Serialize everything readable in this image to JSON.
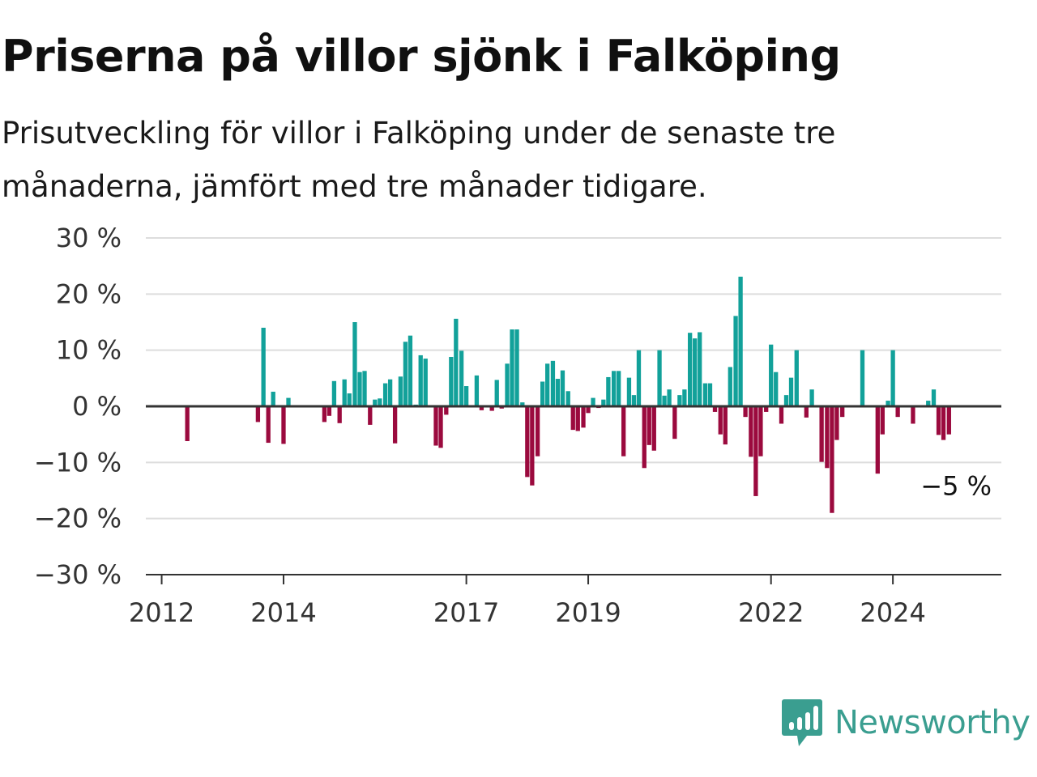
{
  "title": "Priserna på villor sjönk i Falköping",
  "subtitle": "Prisutveckling för villor i Falköping under de senaste tre månaderna, jämfört med tre månader tidigare.",
  "brand": {
    "name": "Newsworthy",
    "icon": "newsworthy-logo-icon",
    "color": "#3a9e90"
  },
  "colors": {
    "positive": "#12a19a",
    "negative": "#9b0a3e",
    "grid": "#dddddd",
    "axis": "#333333"
  },
  "chart_data": {
    "type": "bar",
    "title": "Priserna på villor sjönk i Falköping",
    "xlabel": "",
    "ylabel": "",
    "ylim": [
      -30,
      30
    ],
    "yticks": [
      30,
      20,
      10,
      0,
      -10,
      -20,
      -30
    ],
    "ytick_labels": [
      "30 %",
      "20 %",
      "10 %",
      "0 %",
      "−10 %",
      "−20 %",
      "−30 %"
    ],
    "xticks": [
      2012,
      2014,
      2017,
      2019,
      2022,
      2024
    ],
    "xtick_labels": [
      "2012",
      "2014",
      "2017",
      "2019",
      "2022",
      "2024"
    ],
    "grid": true,
    "end_label": "−5 %",
    "x_unit": "year (monthly bars, decimal year)",
    "bars": [
      {
        "x": 2012.42,
        "value": -6.2
      },
      {
        "x": 2013.58,
        "value": -2.8
      },
      {
        "x": 2013.67,
        "value": 14.0
      },
      {
        "x": 2013.75,
        "value": -6.5
      },
      {
        "x": 2013.83,
        "value": 2.6
      },
      {
        "x": 2014.0,
        "value": -6.7
      },
      {
        "x": 2014.08,
        "value": 1.5
      },
      {
        "x": 2014.67,
        "value": -2.8
      },
      {
        "x": 2014.75,
        "value": -1.7
      },
      {
        "x": 2014.83,
        "value": 4.5
      },
      {
        "x": 2014.92,
        "value": -3.0
      },
      {
        "x": 2015.0,
        "value": 4.8
      },
      {
        "x": 2015.08,
        "value": 2.3
      },
      {
        "x": 2015.17,
        "value": 15.0
      },
      {
        "x": 2015.25,
        "value": 6.1
      },
      {
        "x": 2015.33,
        "value": 6.3
      },
      {
        "x": 2015.42,
        "value": -3.3
      },
      {
        "x": 2015.5,
        "value": 1.2
      },
      {
        "x": 2015.58,
        "value": 1.4
      },
      {
        "x": 2015.67,
        "value": 4.1
      },
      {
        "x": 2015.75,
        "value": 4.8
      },
      {
        "x": 2015.83,
        "value": -6.6
      },
      {
        "x": 2015.92,
        "value": 5.3
      },
      {
        "x": 2016.0,
        "value": 11.5
      },
      {
        "x": 2016.08,
        "value": 12.6
      },
      {
        "x": 2016.17,
        "value": 0.3
      },
      {
        "x": 2016.25,
        "value": 9.1
      },
      {
        "x": 2016.33,
        "value": 8.5
      },
      {
        "x": 2016.5,
        "value": -7.0
      },
      {
        "x": 2016.58,
        "value": -7.4
      },
      {
        "x": 2016.67,
        "value": -1.5
      },
      {
        "x": 2016.75,
        "value": 8.8
      },
      {
        "x": 2016.83,
        "value": 15.6
      },
      {
        "x": 2016.92,
        "value": 9.9
      },
      {
        "x": 2017.0,
        "value": 3.6
      },
      {
        "x": 2017.17,
        "value": 5.5
      },
      {
        "x": 2017.25,
        "value": -0.7
      },
      {
        "x": 2017.42,
        "value": -0.8
      },
      {
        "x": 2017.5,
        "value": 4.7
      },
      {
        "x": 2017.58,
        "value": -0.4
      },
      {
        "x": 2017.67,
        "value": 7.6
      },
      {
        "x": 2017.75,
        "value": 13.7
      },
      {
        "x": 2017.83,
        "value": 13.7
      },
      {
        "x": 2017.92,
        "value": 0.7
      },
      {
        "x": 2018.0,
        "value": -12.6
      },
      {
        "x": 2018.08,
        "value": -14.1
      },
      {
        "x": 2018.17,
        "value": -8.9
      },
      {
        "x": 2018.25,
        "value": 4.4
      },
      {
        "x": 2018.33,
        "value": 7.6
      },
      {
        "x": 2018.42,
        "value": 8.1
      },
      {
        "x": 2018.5,
        "value": 4.9
      },
      {
        "x": 2018.58,
        "value": 6.4
      },
      {
        "x": 2018.67,
        "value": 2.7
      },
      {
        "x": 2018.75,
        "value": -4.2
      },
      {
        "x": 2018.83,
        "value": -4.4
      },
      {
        "x": 2018.92,
        "value": -3.8
      },
      {
        "x": 2019.0,
        "value": -1.2
      },
      {
        "x": 2019.08,
        "value": 1.5
      },
      {
        "x": 2019.17,
        "value": -0.3
      },
      {
        "x": 2019.25,
        "value": 1.2
      },
      {
        "x": 2019.33,
        "value": 5.2
      },
      {
        "x": 2019.42,
        "value": 6.3
      },
      {
        "x": 2019.5,
        "value": 6.3
      },
      {
        "x": 2019.58,
        "value": -8.9
      },
      {
        "x": 2019.67,
        "value": 5.1
      },
      {
        "x": 2019.75,
        "value": 2.0
      },
      {
        "x": 2019.83,
        "value": 10.0
      },
      {
        "x": 2019.92,
        "value": -11.0
      },
      {
        "x": 2020.0,
        "value": -6.9
      },
      {
        "x": 2020.08,
        "value": -7.9
      },
      {
        "x": 2020.17,
        "value": 10.0
      },
      {
        "x": 2020.25,
        "value": 1.9
      },
      {
        "x": 2020.33,
        "value": 3.0
      },
      {
        "x": 2020.42,
        "value": -5.8
      },
      {
        "x": 2020.5,
        "value": 2.0
      },
      {
        "x": 2020.58,
        "value": 3.0
      },
      {
        "x": 2020.67,
        "value": 13.1
      },
      {
        "x": 2020.75,
        "value": 12.1
      },
      {
        "x": 2020.83,
        "value": 13.2
      },
      {
        "x": 2020.92,
        "value": 4.1
      },
      {
        "x": 2021.0,
        "value": 4.1
      },
      {
        "x": 2021.08,
        "value": -1.0
      },
      {
        "x": 2021.17,
        "value": -5.0
      },
      {
        "x": 2021.25,
        "value": -6.8
      },
      {
        "x": 2021.33,
        "value": 7.0
      },
      {
        "x": 2021.42,
        "value": 16.1
      },
      {
        "x": 2021.5,
        "value": 23.1
      },
      {
        "x": 2021.58,
        "value": -1.9
      },
      {
        "x": 2021.67,
        "value": -9.0
      },
      {
        "x": 2021.75,
        "value": -16.0
      },
      {
        "x": 2021.83,
        "value": -8.9
      },
      {
        "x": 2021.92,
        "value": -1.0
      },
      {
        "x": 2022.0,
        "value": 11.0
      },
      {
        "x": 2022.08,
        "value": 6.1
      },
      {
        "x": 2022.17,
        "value": -3.1
      },
      {
        "x": 2022.25,
        "value": 2.0
      },
      {
        "x": 2022.33,
        "value": 5.1
      },
      {
        "x": 2022.42,
        "value": 10.0
      },
      {
        "x": 2022.58,
        "value": -2.0
      },
      {
        "x": 2022.67,
        "value": 3.0
      },
      {
        "x": 2022.83,
        "value": -9.9
      },
      {
        "x": 2022.92,
        "value": -11.0
      },
      {
        "x": 2023.0,
        "value": -19.0
      },
      {
        "x": 2023.08,
        "value": -6.0
      },
      {
        "x": 2023.17,
        "value": -1.9
      },
      {
        "x": 2023.5,
        "value": 10.0
      },
      {
        "x": 2023.75,
        "value": -12.0
      },
      {
        "x": 2023.83,
        "value": -5.0
      },
      {
        "x": 2023.92,
        "value": 1.0
      },
      {
        "x": 2024.0,
        "value": 10.0
      },
      {
        "x": 2024.08,
        "value": -1.9
      },
      {
        "x": 2024.33,
        "value": -3.1
      },
      {
        "x": 2024.58,
        "value": 1.0
      },
      {
        "x": 2024.67,
        "value": 3.0
      },
      {
        "x": 2024.75,
        "value": -5.1
      },
      {
        "x": 2024.83,
        "value": -6.0
      },
      {
        "x": 2024.92,
        "value": -5.0
      }
    ]
  }
}
